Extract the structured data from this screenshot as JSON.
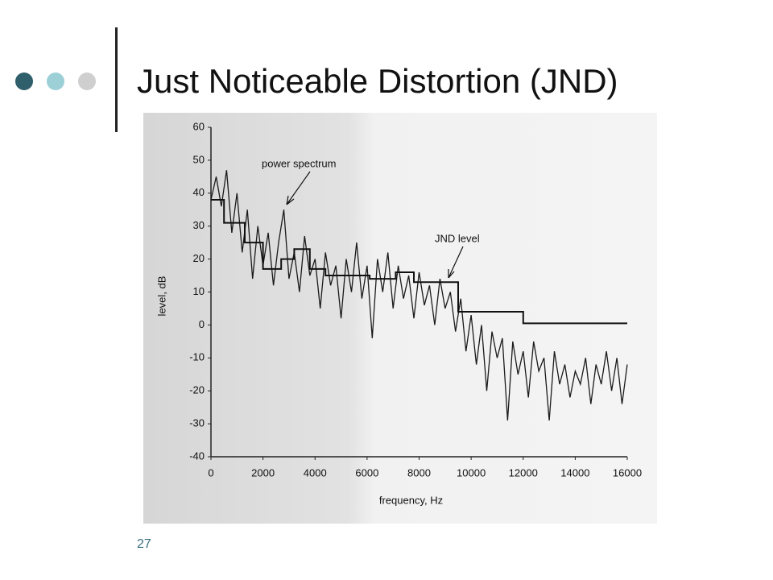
{
  "slide": {
    "title": "Just Noticeable Distortion (JND)",
    "page_number": "27"
  },
  "chart_data": {
    "type": "line",
    "x_label": "frequency, Hz",
    "y_label": "level, dB",
    "xlim": [
      0,
      16000
    ],
    "xticks": [
      0,
      2000,
      4000,
      6000,
      8000,
      10000,
      12000,
      14000,
      16000
    ],
    "ylim": [
      -40,
      60
    ],
    "yticks": [
      -40,
      -30,
      -20,
      -10,
      0,
      10,
      20,
      30,
      40,
      50,
      60
    ],
    "annotations": [
      "power spectrum",
      "JND level"
    ],
    "series": [
      {
        "name": "power spectrum",
        "color": "#1a1a1a",
        "x": [
          0,
          200,
          400,
          600,
          800,
          1000,
          1200,
          1400,
          1600,
          1800,
          2000,
          2200,
          2400,
          2600,
          2800,
          3000,
          3200,
          3400,
          3600,
          3800,
          4000,
          4200,
          4400,
          4600,
          4800,
          5000,
          5200,
          5400,
          5600,
          5800,
          6000,
          6200,
          6400,
          6600,
          6800,
          7000,
          7200,
          7400,
          7600,
          7800,
          8000,
          8200,
          8400,
          8600,
          8800,
          9000,
          9200,
          9400,
          9600,
          9800,
          10000,
          10200,
          10400,
          10600,
          10800,
          11000,
          11200,
          11400,
          11600,
          11800,
          12000,
          12200,
          12400,
          12600,
          12800,
          13000,
          13200,
          13400,
          13600,
          13800,
          14000,
          14200,
          14400,
          14600,
          14800,
          15000,
          15200,
          15400,
          15600,
          15800,
          16000
        ],
        "values": [
          38,
          45,
          36,
          47,
          28,
          40,
          22,
          35,
          14,
          30,
          18,
          28,
          12,
          25,
          35,
          14,
          22,
          10,
          27,
          15,
          20,
          5,
          22,
          12,
          18,
          2,
          20,
          10,
          25,
          8,
          18,
          -4,
          20,
          10,
          22,
          5,
          18,
          8,
          15,
          2,
          16,
          6,
          12,
          0,
          14,
          5,
          10,
          -2,
          8,
          -8,
          3,
          -12,
          0,
          -20,
          -2,
          -10,
          -4,
          -29,
          -5,
          -15,
          -8,
          -22,
          -5,
          -14,
          -10,
          -29,
          -8,
          -18,
          -12,
          -22,
          -14,
          -18,
          -10,
          -24,
          -12,
          -18,
          -8,
          -20,
          -10,
          -24,
          -12
        ]
      },
      {
        "name": "JND level",
        "color": "#111111",
        "x": [
          0,
          500,
          500,
          1300,
          1300,
          2000,
          2000,
          2700,
          2700,
          3200,
          3200,
          3800,
          3800,
          4400,
          4400,
          6100,
          6100,
          7100,
          7100,
          7800,
          7800,
          9500,
          9500,
          12000,
          12000,
          16000
        ],
        "values": [
          38,
          38,
          31,
          31,
          25,
          25,
          17,
          17,
          20,
          20,
          23,
          23,
          17,
          17,
          15,
          15,
          14,
          14,
          16,
          16,
          13,
          13,
          4,
          4,
          0.5,
          0.5
        ]
      }
    ]
  }
}
